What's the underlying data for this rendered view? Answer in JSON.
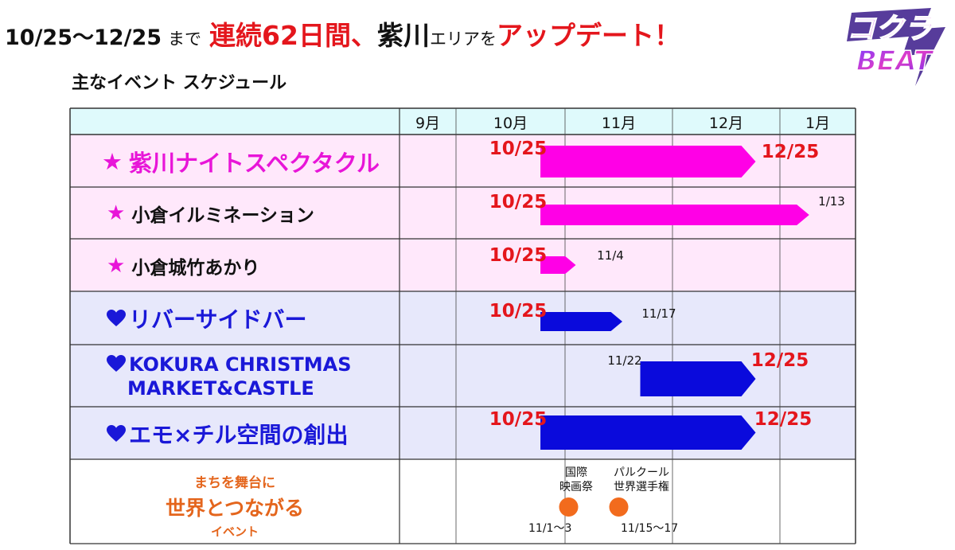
{
  "header": {
    "date_range": "10/25〜12/25",
    "made": "まで",
    "continuous": "連続62日間、",
    "area": "紫川",
    "area_suffix": "エリアを",
    "update": "アップデート！"
  },
  "logo": {
    "line1": "コクラ",
    "line2": "BEAT"
  },
  "subtitle": "主なイベント スケジュール",
  "colors": {
    "pink": "#ff00e6",
    "blue": "#0a0adc",
    "orange": "#f26b1d",
    "red": "#e4161c",
    "header_bg": "#dffafc"
  },
  "chart_data": {
    "type": "gantt",
    "title": "主なイベント スケジュール",
    "months": [
      "9月",
      "10月",
      "11月",
      "12月",
      "1月"
    ],
    "events": [
      {
        "label": "紫川ナイトスペクタクル",
        "marker": "★",
        "group": "pink",
        "start": "10/25",
        "end": "12/25"
      },
      {
        "label": "小倉イルミネーション",
        "marker": "★",
        "group": "pink",
        "start": "10/25",
        "end": "1/13"
      },
      {
        "label": "小倉城竹あかり",
        "marker": "★",
        "group": "pink",
        "start": "10/25",
        "end": "11/4"
      },
      {
        "label": "リバーサイドバー",
        "marker": "heart",
        "group": "blue",
        "start": "10/25",
        "end": "11/17"
      },
      {
        "label_line1": "KOKURA CHRISTMAS",
        "label_line2": "MARKET&CASTLE",
        "marker": "heart",
        "group": "blue",
        "start": "11/22",
        "end": "12/25"
      },
      {
        "label": "エモ×チル空間の創出",
        "marker": "heart",
        "group": "blue",
        "start": "10/25",
        "end": "12/25"
      }
    ],
    "world_events": {
      "label_line1": "まちを舞台に",
      "label_line2": "世界とつながる",
      "label_line3": "イベント",
      "items": [
        {
          "name_line1": "国際",
          "name_line2": "映画祭",
          "date": "11/1〜3",
          "start": "11/1",
          "end": "11/3"
        },
        {
          "name_line1": "パルクール",
          "name_line2": "世界選手権",
          "date": "11/15〜17",
          "start": "11/15",
          "end": "11/17"
        }
      ]
    }
  }
}
